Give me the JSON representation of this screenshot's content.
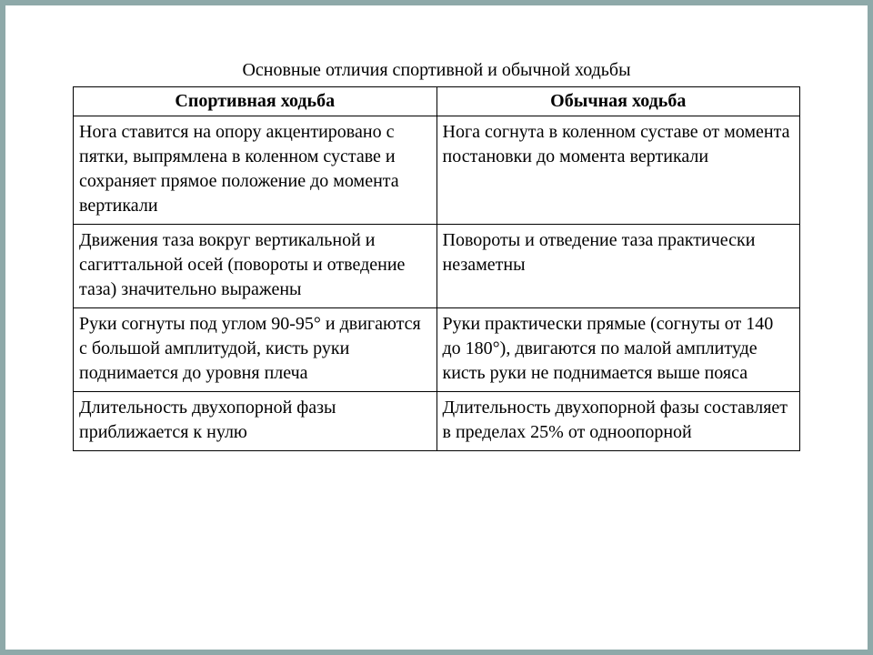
{
  "title": "Основные отличия спортивной и обычной ходьбы",
  "table": {
    "columns": [
      "Спортивная ходьба",
      "Обычная ходьба"
    ],
    "rows": [
      [
        "Нога ставится на опору акцентировано с пятки, выпрямлена в коленном суставе и сохраняет прямое положение до момента вертикали",
        "Нога согнута в коленном суставе от момента постановки до момента вертикали"
      ],
      [
        "Движения таза вокруг вертикальной и сагиттальной осей (повороты и отведение таза) значительно выражены",
        "Повороты и отведение таза практически незаметны"
      ],
      [
        "Руки согнуты под углом 90-95° и двигаются с большой амплитудой, кисть руки поднимается до уровня плеча",
        "Руки практически прямые (согнуты от 140 до 180°), двигаются по малой амплитуде кисть руки не поднимается выше пояса"
      ],
      [
        "Длительность двухопорной фазы приближается к нулю",
        "Длительность двухопорной фазы составляет в пределах 25% от одноопорной"
      ]
    ],
    "border_color": "#000000",
    "text_color": "#000000",
    "background_color": "#ffffff",
    "font_family": "Times New Roman",
    "title_fontsize": 20,
    "header_fontsize": 20,
    "cell_fontsize": 20
  },
  "page_background": "#ffffff",
  "outer_background": "#8ea9a9"
}
